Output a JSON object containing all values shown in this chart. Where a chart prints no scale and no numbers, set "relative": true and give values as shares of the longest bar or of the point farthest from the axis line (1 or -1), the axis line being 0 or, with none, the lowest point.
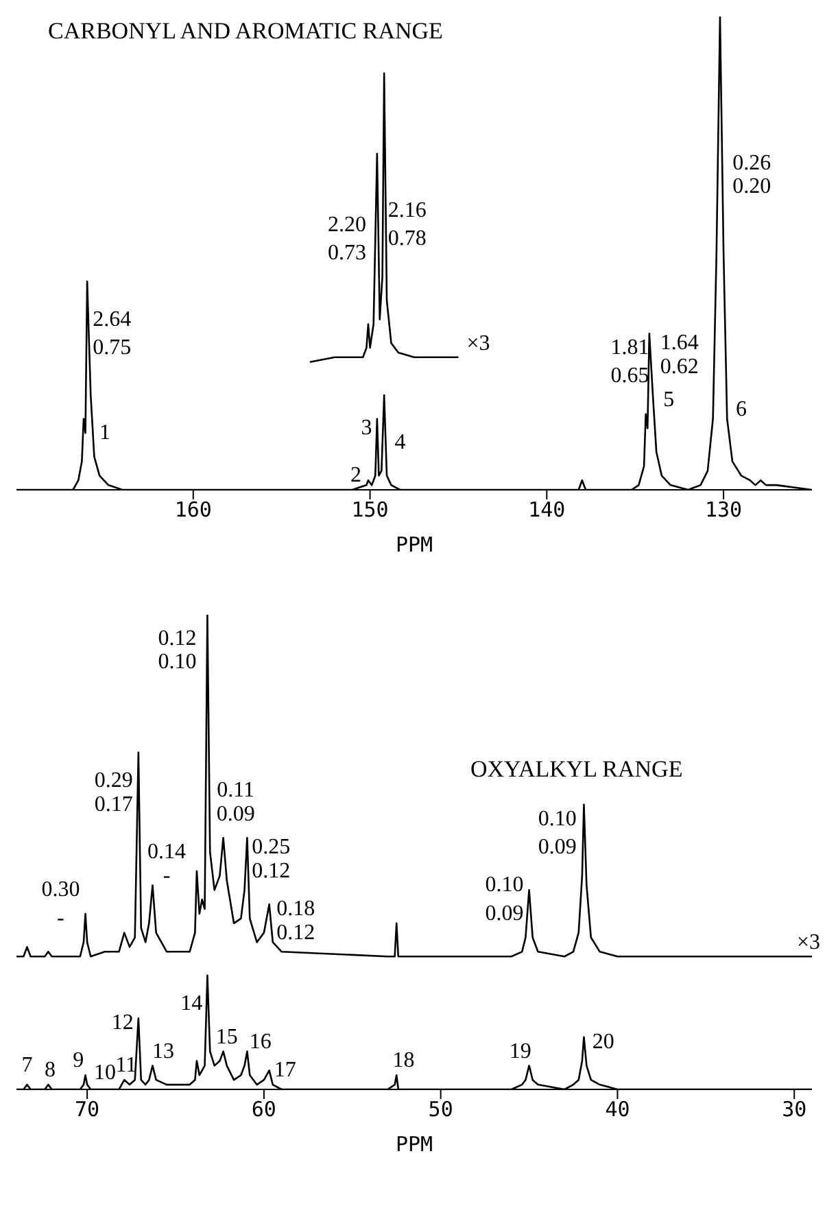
{
  "chart_data": [
    {
      "type": "line",
      "title": "CARBONYL AND AROMATIC RANGE",
      "xlabel": "PPM",
      "relative": true,
      "xlim": [
        170,
        125
      ],
      "xticks": [
        160,
        150,
        140,
        130
      ],
      "series": [
        {
          "color": "#000000",
          "x": [
            170,
            166.8,
            166.5,
            166.3,
            166.2,
            166.1,
            166.0,
            165.8,
            165.6,
            165.3,
            164.8,
            164,
            151,
            150.2,
            150.1,
            149.9,
            149.7,
            149.6,
            149.5,
            149.35,
            149.2,
            149.05,
            148.8,
            148.3,
            138.2,
            138.0,
            137.8,
            135.2,
            134.8,
            134.5,
            134.4,
            134.3,
            134.2,
            134.0,
            133.8,
            133.5,
            133.0,
            132,
            131.3,
            130.9,
            130.6,
            130.4,
            130.2,
            130.0,
            129.8,
            129.5,
            129.0,
            128.5,
            128.2,
            127.9,
            127.6,
            127.0,
            125
          ],
          "values": [
            0,
            0,
            0.02,
            0.06,
            0.15,
            0.12,
            0.44,
            0.2,
            0.07,
            0.03,
            0.01,
            0,
            0,
            0.01,
            0.02,
            0.01,
            0.03,
            0.15,
            0.03,
            0.04,
            0.2,
            0.03,
            0.01,
            0,
            0,
            0.02,
            0,
            0,
            0.01,
            0.05,
            0.16,
            0.13,
            0.33,
            0.2,
            0.08,
            0.03,
            0.01,
            0,
            0.01,
            0.04,
            0.15,
            0.5,
            1.0,
            0.5,
            0.15,
            0.06,
            0.03,
            0.02,
            0.01,
            0.02,
            0.01,
            0.01,
            0
          ]
        },
        {
          "name": "×3",
          "color": "#000000",
          "x": [
            153.4,
            152,
            151,
            150.4,
            150.2,
            150.1,
            150.0,
            149.8,
            149.6,
            149.45,
            149.3,
            149.2,
            149.05,
            148.8,
            148.4,
            147.5,
            146,
            145
          ],
          "values": [
            0.27,
            0.28,
            0.28,
            0.28,
            0.3,
            0.35,
            0.3,
            0.35,
            0.71,
            0.36,
            0.45,
            0.88,
            0.4,
            0.31,
            0.29,
            0.28,
            0.28,
            0.28
          ]
        }
      ],
      "annotations": [
        "1",
        "2.64",
        "0.75",
        "2",
        "3",
        "4",
        "2.20",
        "0.73",
        "2.16",
        "0.78",
        "1.81",
        "0.65",
        "1.64",
        "0.62",
        "5",
        "6",
        "0.26",
        "0.20"
      ]
    },
    {
      "type": "line",
      "title": "OXYALKYL RANGE",
      "xlabel": "PPM",
      "relative": true,
      "xlim": [
        74,
        29
      ],
      "xticks": [
        70,
        60,
        50,
        40,
        30
      ],
      "series": [
        {
          "name": "×3",
          "color": "#000000",
          "x": [
            74,
            73.6,
            73.4,
            73.2,
            72.4,
            72.2,
            72.0,
            70.4,
            70.2,
            70.1,
            70.0,
            69.8,
            69.0,
            68.2,
            67.9,
            67.6,
            67.3,
            67.1,
            66.95,
            66.7,
            66.5,
            66.3,
            66.1,
            65.5,
            64.2,
            63.9,
            63.8,
            63.65,
            63.5,
            63.35,
            63.2,
            63.05,
            62.8,
            62.5,
            62.3,
            62.1,
            61.7,
            61.3,
            61.1,
            60.95,
            60.8,
            60.4,
            60.0,
            59.7,
            59.5,
            59.0,
            53,
            52.6,
            52.5,
            52.4,
            46,
            45.4,
            45.2,
            45.0,
            44.8,
            44.5,
            43,
            42.5,
            42.2,
            42.0,
            41.9,
            41.75,
            41.5,
            41.0,
            40,
            29
          ],
          "values": [
            0.28,
            0.28,
            0.3,
            0.28,
            0.28,
            0.29,
            0.28,
            0.28,
            0.31,
            0.37,
            0.31,
            0.28,
            0.29,
            0.29,
            0.33,
            0.3,
            0.32,
            0.71,
            0.34,
            0.31,
            0.35,
            0.43,
            0.33,
            0.29,
            0.29,
            0.33,
            0.46,
            0.37,
            0.4,
            0.38,
            1.0,
            0.5,
            0.42,
            0.45,
            0.53,
            0.44,
            0.35,
            0.36,
            0.42,
            0.53,
            0.36,
            0.31,
            0.33,
            0.39,
            0.31,
            0.29,
            0.28,
            0.28,
            0.35,
            0.28,
            0.28,
            0.29,
            0.32,
            0.42,
            0.32,
            0.29,
            0.28,
            0.29,
            0.33,
            0.45,
            0.6,
            0.43,
            0.32,
            0.29,
            0.28,
            0.28
          ]
        },
        {
          "color": "#000000",
          "x": [
            74,
            73.6,
            73.4,
            73.2,
            72.4,
            72.2,
            72.0,
            70.4,
            70.2,
            70.1,
            70.0,
            69.8,
            68.2,
            67.9,
            67.6,
            67.3,
            67.1,
            66.95,
            66.7,
            66.5,
            66.3,
            66.1,
            65.5,
            64.2,
            63.9,
            63.8,
            63.65,
            63.5,
            63.35,
            63.2,
            63.05,
            62.8,
            62.5,
            62.3,
            62.1,
            61.7,
            61.3,
            61.1,
            60.95,
            60.8,
            60.4,
            60.0,
            59.7,
            59.5,
            59.0,
            53,
            52.6,
            52.5,
            52.4,
            46,
            45.4,
            45.2,
            45.0,
            44.8,
            44.5,
            43,
            42.5,
            42.2,
            42.0,
            41.9,
            41.75,
            41.5,
            41.0,
            40,
            29
          ],
          "values": [
            0,
            0,
            0.01,
            0,
            0,
            0.01,
            0,
            0,
            0.01,
            0.03,
            0.01,
            0,
            0,
            0.02,
            0.01,
            0.02,
            0.15,
            0.02,
            0.01,
            0.02,
            0.05,
            0.02,
            0.01,
            0.01,
            0.02,
            0.06,
            0.03,
            0.04,
            0.05,
            0.24,
            0.08,
            0.05,
            0.06,
            0.08,
            0.05,
            0.02,
            0.03,
            0.05,
            0.08,
            0.03,
            0.01,
            0.02,
            0.04,
            0.01,
            0,
            0,
            0.01,
            0.03,
            0,
            0,
            0.01,
            0.02,
            0.05,
            0.02,
            0.01,
            0,
            0.01,
            0.02,
            0.06,
            0.11,
            0.05,
            0.02,
            0.01,
            0,
            0
          ]
        }
      ],
      "annotations": [
        "0.30",
        "-",
        "0.29",
        "0.17",
        "0.14",
        "-",
        "0.12",
        "0.10",
        "0.11",
        "0.09",
        "0.25",
        "0.12",
        "0.18",
        "0.12",
        "0.10",
        "0.09",
        "0.10",
        "0.09",
        "7",
        "8",
        "9",
        "10",
        "11",
        "12",
        "13",
        "14",
        "15",
        "16",
        "17",
        "18",
        "19",
        "20"
      ]
    }
  ]
}
